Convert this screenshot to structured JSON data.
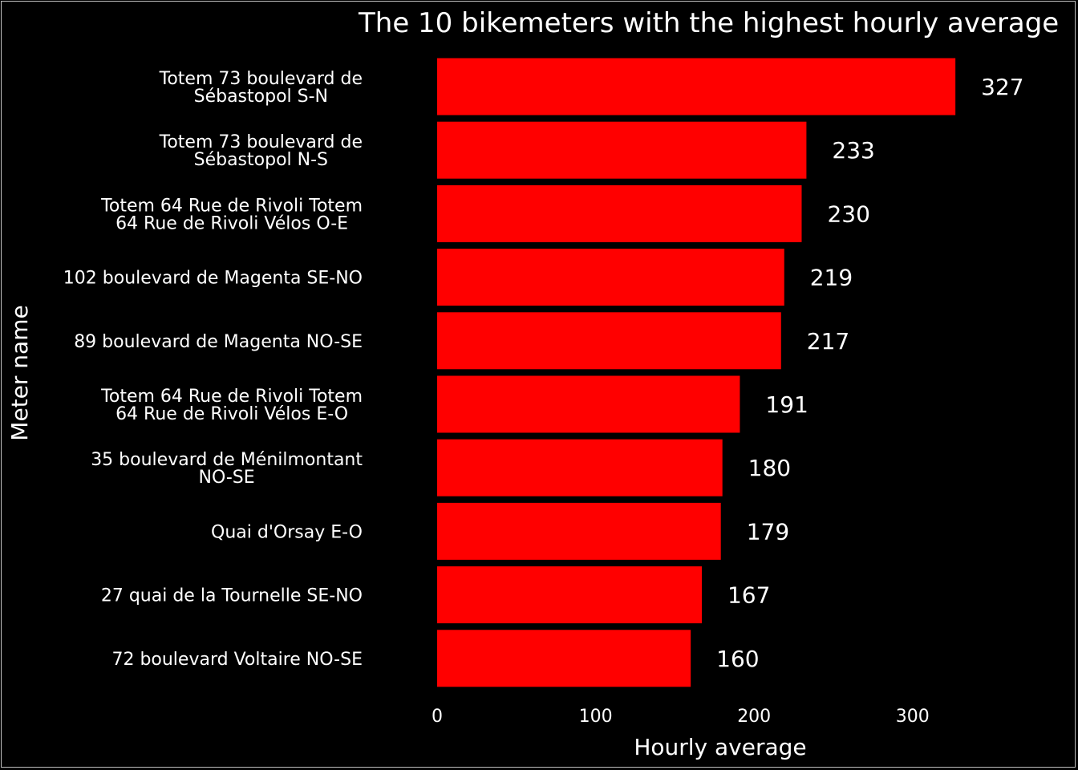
{
  "chart_data": {
    "type": "bar",
    "orientation": "horizontal",
    "title": "The 10 bikemeters with the highest hourly average",
    "xlabel": "Hourly average",
    "ylabel": "Meter name",
    "xlim": [
      0,
      385
    ],
    "xticks": [
      0,
      100,
      200,
      300
    ],
    "grid": false,
    "legend": "none",
    "bar_color": "#ff0000",
    "background_color": "#000000",
    "text_color": "#ffffff",
    "categories": [
      [
        "Totem 73 boulevard de",
        "Sébastopol S-N"
      ],
      [
        "Totem 73 boulevard de",
        "Sébastopol N-S"
      ],
      [
        "Totem 64 Rue de Rivoli Totem",
        "64 Rue de Rivoli Vélos O-E"
      ],
      [
        "102 boulevard de Magenta SE-NO"
      ],
      [
        "89 boulevard de Magenta NO-SE"
      ],
      [
        "Totem 64 Rue de Rivoli Totem",
        "64 Rue de Rivoli Vélos E-O"
      ],
      [
        "35 boulevard de Ménilmontant",
        "NO-SE"
      ],
      [
        "Quai d'Orsay E-O"
      ],
      [
        "27 quai de la Tournelle SE-NO"
      ],
      [
        "72 boulevard Voltaire NO-SE"
      ]
    ],
    "values": [
      327,
      233,
      230,
      219,
      217,
      191,
      180,
      179,
      167,
      160
    ],
    "data_labels": [
      "327",
      "233",
      "230",
      "219",
      "217",
      "191",
      "180",
      "179",
      "167",
      "160"
    ]
  }
}
